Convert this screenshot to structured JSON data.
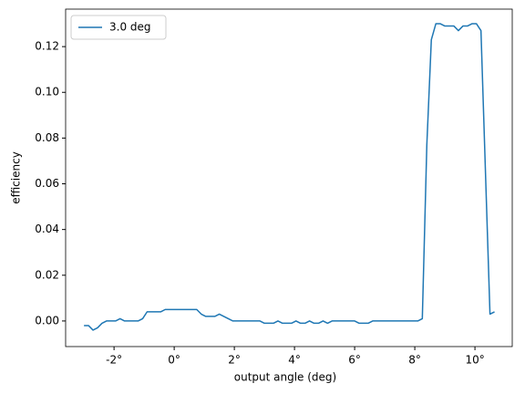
{
  "chart_data": {
    "type": "line",
    "xlabel": "output angle (deg)",
    "ylabel": "efficiency",
    "x": [
      -3.0,
      -2.85,
      -2.7,
      -2.55,
      -2.4,
      -2.25,
      -2.1,
      -1.95,
      -1.8,
      -1.65,
      -1.5,
      -1.35,
      -1.2,
      -1.05,
      -0.9,
      -0.75,
      -0.6,
      -0.45,
      -0.3,
      -0.15,
      0,
      0.15,
      0.3,
      0.45,
      0.6,
      0.75,
      0.9,
      1.05,
      1.2,
      1.35,
      1.5,
      1.65,
      1.8,
      1.95,
      2.1,
      2.25,
      2.4,
      2.55,
      2.7,
      2.85,
      3.0,
      3.15,
      3.3,
      3.45,
      3.6,
      3.75,
      3.9,
      4.05,
      4.2,
      4.35,
      4.5,
      4.65,
      4.8,
      4.95,
      5.1,
      5.25,
      5.4,
      5.55,
      5.7,
      5.85,
      6.0,
      6.15,
      6.3,
      6.45,
      6.6,
      6.75,
      6.9,
      7.05,
      7.2,
      7.35,
      7.5,
      7.65,
      7.8,
      7.95,
      8.1,
      8.25,
      8.4,
      8.55,
      8.7,
      8.85,
      9.0,
      9.15,
      9.3,
      9.45,
      9.6,
      9.75,
      9.9,
      10.05,
      10.2,
      10.5,
      10.65
    ],
    "series": [
      {
        "name": "3.0 deg",
        "color": "#1f77b4",
        "values": [
          -0.002,
          -0.002,
          -0.004,
          -0.003,
          -0.001,
          0,
          0,
          0,
          0.001,
          0,
          0,
          0,
          0,
          0.001,
          0.004,
          0.004,
          0.004,
          0.004,
          0.005,
          0.005,
          0.005,
          0.005,
          0.005,
          0.005,
          0.005,
          0.005,
          0.003,
          0.002,
          0.002,
          0.002,
          0.003,
          0.002,
          0.001,
          0,
          0,
          0,
          0,
          0,
          0,
          0,
          -0.001,
          -0.001,
          -0.001,
          0,
          -0.001,
          -0.001,
          -0.001,
          0,
          -0.001,
          -0.001,
          0,
          -0.001,
          -0.001,
          0,
          -0.001,
          0,
          0,
          0,
          0,
          0,
          0,
          -0.001,
          -0.001,
          -0.001,
          0,
          0,
          0,
          0,
          0,
          0,
          0,
          0,
          0,
          0,
          0,
          0.001,
          0.077,
          0.123,
          0.13,
          0.13,
          0.129,
          0.129,
          0.129,
          0.127,
          0.129,
          0.129,
          0.13,
          0.13,
          0.127,
          0.003,
          0.004
        ]
      }
    ],
    "xlim": [
      -3.61,
      11.24
    ],
    "ylim": [
      -0.0112,
      0.1364
    ],
    "xticks": [
      {
        "value": -2,
        "label": "-2°"
      },
      {
        "value": 0,
        "label": "0°"
      },
      {
        "value": 2,
        "label": "2°"
      },
      {
        "value": 4,
        "label": "4°"
      },
      {
        "value": 6,
        "label": "6°"
      },
      {
        "value": 8,
        "label": "8°"
      },
      {
        "value": 10,
        "label": "10°"
      }
    ],
    "yticks": [
      {
        "value": 0,
        "label": "0.00"
      },
      {
        "value": 0.02,
        "label": "0.02"
      },
      {
        "value": 0.04,
        "label": "0.04"
      },
      {
        "value": 0.06,
        "label": "0.06"
      },
      {
        "value": 0.08,
        "label": "0.08"
      },
      {
        "value": 0.1,
        "label": "0.10"
      },
      {
        "value": 0.12,
        "label": "0.12"
      }
    ],
    "legend": "upper left"
  }
}
